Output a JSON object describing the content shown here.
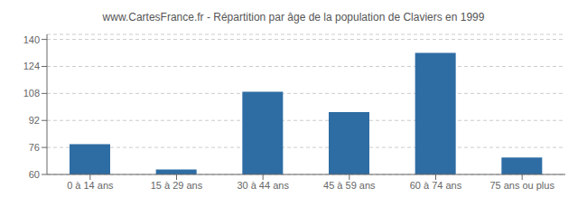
{
  "chart_data": {
    "type": "bar",
    "title": "www.CartesFrance.fr - Répartition par âge de la population de Claviers en 1999",
    "categories": [
      "0 à 14 ans",
      "15 à 29 ans",
      "30 à 44 ans",
      "45 à 59 ans",
      "60 à 74 ans",
      "75 ans ou plus"
    ],
    "values": [
      78,
      63,
      109,
      97,
      132,
      70
    ],
    "color": "#2e6da4",
    "ylim": [
      60,
      143
    ],
    "yticks": [
      60,
      76,
      92,
      108,
      124,
      140
    ],
    "grid": true
  }
}
